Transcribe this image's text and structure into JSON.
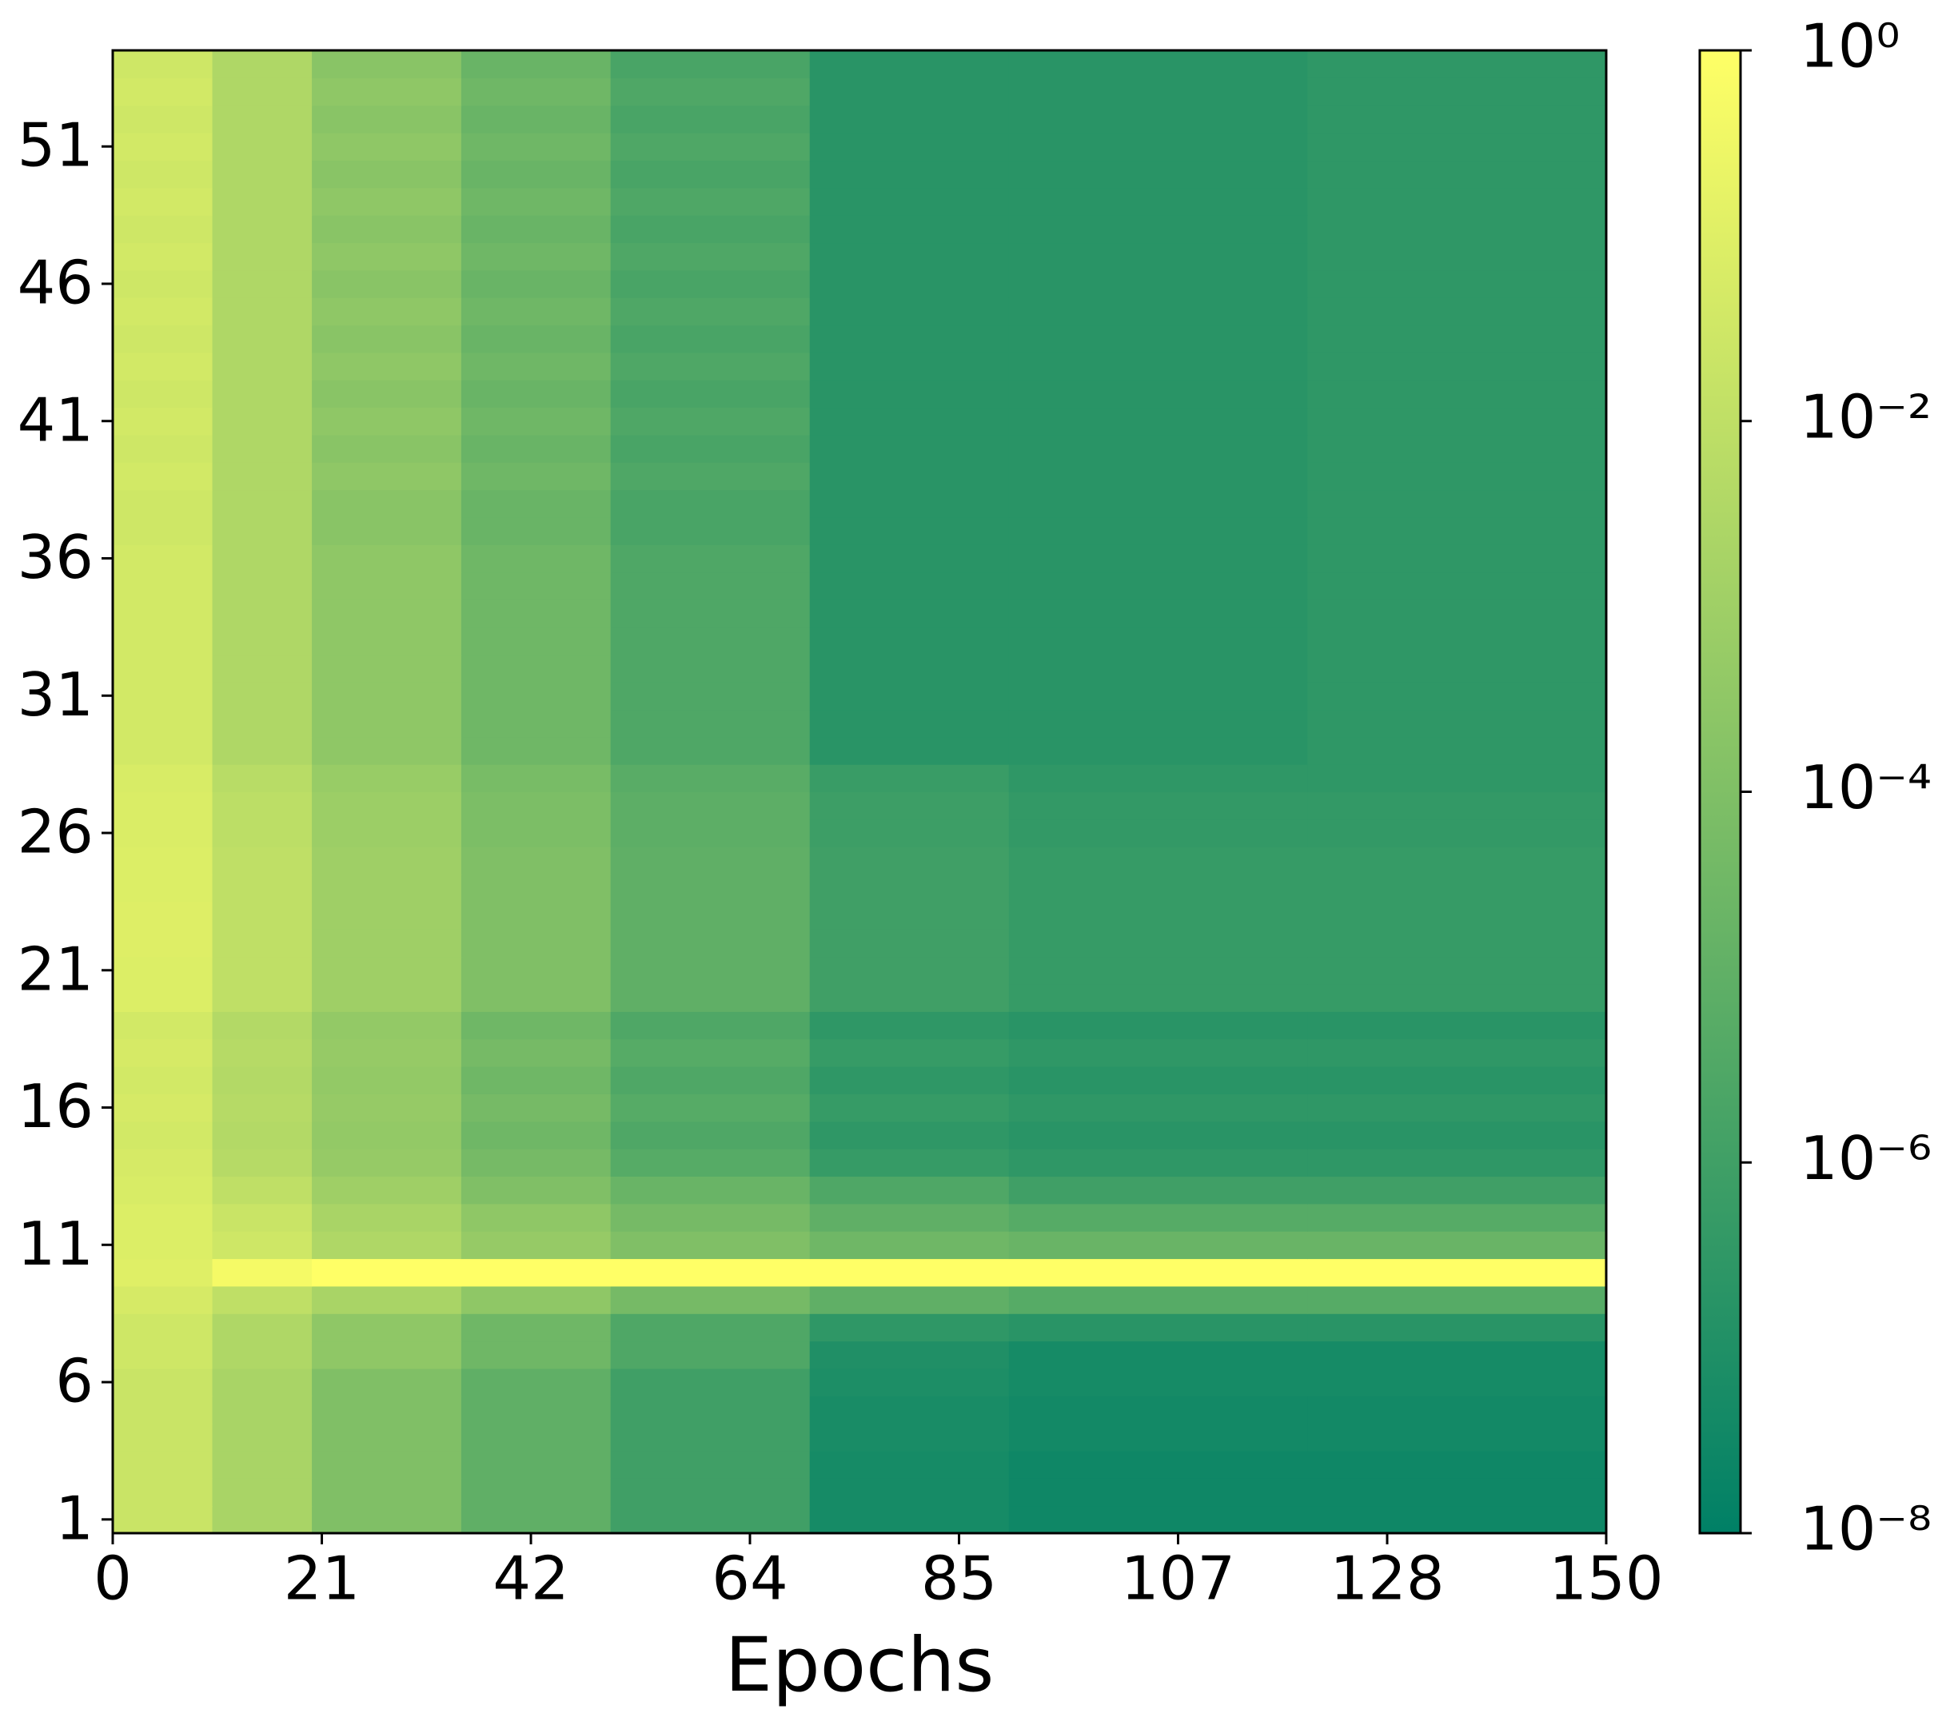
{
  "chart_data": {
    "type": "heatmap",
    "x_label": "Epochs",
    "x_edges": [
      0,
      10,
      20,
      35,
      50,
      70,
      90,
      120,
      150
    ],
    "y": [
      1,
      2,
      3,
      4,
      5,
      6,
      7,
      8,
      9,
      10,
      11,
      12,
      13,
      14,
      15,
      16,
      17,
      18,
      19,
      20,
      21,
      22,
      23,
      24,
      25,
      26,
      27,
      28,
      29,
      30,
      31,
      32,
      33,
      34,
      35,
      36,
      37,
      38,
      39,
      40,
      41,
      42,
      43,
      44,
      45,
      46,
      47,
      48,
      49,
      50,
      51,
      52,
      53,
      54
    ],
    "values": [
      [
        0.02,
        0.002,
        0.0001,
        1e-05,
        1e-06,
        5e-08,
        3e-08,
        3e-08
      ],
      [
        0.02,
        0.002,
        0.0001,
        1e-05,
        1e-06,
        5e-08,
        3e-08,
        3e-08
      ],
      [
        0.02,
        0.002,
        0.0001,
        1e-05,
        1e-06,
        5e-08,
        3e-08,
        3e-08
      ],
      [
        0.02,
        0.002,
        0.0001,
        1e-05,
        1e-06,
        6e-08,
        4e-08,
        4e-08
      ],
      [
        0.02,
        0.002,
        0.0001,
        1e-05,
        1e-06,
        6e-08,
        4e-08,
        4e-08
      ],
      [
        0.02,
        0.002,
        0.0001,
        1e-05,
        1e-06,
        8e-08,
        5e-08,
        5e-08
      ],
      [
        0.03,
        0.003,
        0.0003,
        3e-05,
        3e-06,
        1e-07,
        5e-08,
        5e-08
      ],
      [
        0.03,
        0.003,
        0.0003,
        3e-05,
        3e-06,
        3e-07,
        2e-07,
        2e-07
      ],
      [
        0.05,
        0.01,
        0.002,
        0.0003,
        5e-05,
        1e-05,
        5e-06,
        5e-06
      ],
      [
        0.1,
        0.5,
        1,
        1,
        1,
        1,
        1,
        1
      ],
      [
        0.08,
        0.03,
        0.003,
        0.0005,
        0.0001,
        3e-05,
        2e-05,
        2e-05
      ],
      [
        0.08,
        0.02,
        0.002,
        0.0003,
        5e-05,
        1e-05,
        5e-06,
        5e-06
      ],
      [
        0.06,
        0.01,
        0.001,
        0.0001,
        2e-05,
        3e-06,
        1e-06,
        1e-06
      ],
      [
        0.05,
        0.005,
        0.0005,
        5e-05,
        5e-06,
        5e-07,
        3e-07,
        3e-07
      ],
      [
        0.04,
        0.004,
        0.0004,
        3e-05,
        3e-06,
        3e-07,
        2e-07,
        2e-07
      ],
      [
        0.05,
        0.005,
        0.0005,
        5e-05,
        5e-06,
        5e-07,
        3e-07,
        3e-07
      ],
      [
        0.04,
        0.004,
        0.0004,
        3e-05,
        3e-06,
        3e-07,
        2e-07,
        2e-07
      ],
      [
        0.05,
        0.005,
        0.0005,
        5e-05,
        5e-06,
        5e-07,
        3e-07,
        3e-07
      ],
      [
        0.04,
        0.004,
        0.0004,
        3e-05,
        3e-06,
        3e-07,
        2e-07,
        2e-07
      ],
      [
        0.08,
        0.01,
        0.001,
        0.0001,
        1e-05,
        1e-06,
        5e-07,
        5e-07
      ],
      [
        0.08,
        0.01,
        0.001,
        0.0001,
        1e-05,
        1e-06,
        5e-07,
        5e-07
      ],
      [
        0.09,
        0.01,
        0.001,
        0.0001,
        1e-05,
        1e-06,
        5e-07,
        5e-07
      ],
      [
        0.09,
        0.01,
        0.001,
        0.0001,
        1e-05,
        1e-06,
        5e-07,
        5e-07
      ],
      [
        0.08,
        0.01,
        0.001,
        0.0001,
        1e-05,
        1e-06,
        5e-07,
        5e-07
      ],
      [
        0.08,
        0.01,
        0.001,
        0.0001,
        1e-05,
        1e-06,
        5e-07,
        5e-07
      ],
      [
        0.07,
        0.008,
        0.0008,
        8e-05,
        8e-06,
        8e-07,
        4e-07,
        4e-07
      ],
      [
        0.07,
        0.008,
        0.0008,
        8e-05,
        8e-06,
        8e-07,
        4e-07,
        4e-07
      ],
      [
        0.06,
        0.006,
        0.0006,
        6e-05,
        6e-06,
        6e-07,
        3e-07,
        3e-07
      ],
      [
        0.04,
        0.003,
        0.0003,
        3e-05,
        3e-06,
        2e-07,
        2e-07,
        3e-07
      ],
      [
        0.04,
        0.003,
        0.0003,
        3e-05,
        3e-06,
        2e-07,
        2e-07,
        3e-07
      ],
      [
        0.04,
        0.003,
        0.0003,
        3e-05,
        3e-06,
        2e-07,
        2e-07,
        3e-07
      ],
      [
        0.04,
        0.003,
        0.0003,
        3e-05,
        3e-06,
        2e-07,
        2e-07,
        3e-07
      ],
      [
        0.04,
        0.003,
        0.0003,
        3e-05,
        3e-06,
        2e-07,
        2e-07,
        3e-07
      ],
      [
        0.04,
        0.003,
        0.0003,
        3e-05,
        3e-06,
        2e-07,
        2e-07,
        3e-07
      ],
      [
        0.04,
        0.003,
        0.0003,
        3e-05,
        3e-06,
        2e-07,
        2e-07,
        3e-07
      ],
      [
        0.04,
        0.003,
        0.0003,
        3e-05,
        3e-06,
        2e-07,
        2e-07,
        3e-07
      ],
      [
        0.03,
        0.003,
        0.0002,
        2e-05,
        2e-06,
        2e-07,
        2e-07,
        3e-07
      ],
      [
        0.03,
        0.003,
        0.0002,
        2e-05,
        2e-06,
        2e-07,
        2e-07,
        3e-07
      ],
      [
        0.04,
        0.003,
        0.0003,
        3e-05,
        3e-06,
        2e-07,
        2e-07,
        3e-07
      ],
      [
        0.03,
        0.003,
        0.0002,
        2e-05,
        2e-06,
        2e-07,
        2e-07,
        3e-07
      ],
      [
        0.04,
        0.003,
        0.0003,
        3e-05,
        3e-06,
        2e-07,
        2e-07,
        3e-07
      ],
      [
        0.03,
        0.003,
        0.0002,
        2e-05,
        2e-06,
        2e-07,
        2e-07,
        3e-07
      ],
      [
        0.04,
        0.003,
        0.0003,
        3e-05,
        3e-06,
        2e-07,
        2e-07,
        3e-07
      ],
      [
        0.03,
        0.003,
        0.0002,
        2e-05,
        2e-06,
        2e-07,
        2e-07,
        3e-07
      ],
      [
        0.04,
        0.003,
        0.0003,
        3e-05,
        3e-06,
        2e-07,
        2e-07,
        3e-07
      ],
      [
        0.03,
        0.003,
        0.0002,
        2e-05,
        2e-06,
        2e-07,
        2e-07,
        3e-07
      ],
      [
        0.04,
        0.003,
        0.0003,
        3e-05,
        3e-06,
        2e-07,
        2e-07,
        3e-07
      ],
      [
        0.03,
        0.003,
        0.0002,
        2e-05,
        2e-06,
        2e-07,
        2e-07,
        3e-07
      ],
      [
        0.04,
        0.003,
        0.0003,
        3e-05,
        3e-06,
        2e-07,
        2e-07,
        3e-07
      ],
      [
        0.03,
        0.003,
        0.0002,
        2e-05,
        2e-06,
        2e-07,
        2e-07,
        3e-07
      ],
      [
        0.04,
        0.003,
        0.0003,
        3e-05,
        3e-06,
        2e-07,
        2e-07,
        3e-07
      ],
      [
        0.03,
        0.003,
        0.0002,
        2e-05,
        2e-06,
        2e-07,
        2e-07,
        3e-07
      ],
      [
        0.04,
        0.003,
        0.0003,
        3e-05,
        3e-06,
        2e-07,
        2e-07,
        3e-07
      ],
      [
        0.03,
        0.003,
        0.0002,
        2e-05,
        2e-06,
        2e-07,
        2e-07,
        3e-07
      ]
    ],
    "xlim": [
      0,
      150
    ],
    "xticks": [
      0,
      21,
      42,
      64,
      85,
      107,
      128,
      150
    ],
    "ylim": [
      0.5,
      54.5
    ],
    "yticks": [
      1,
      6,
      11,
      16,
      21,
      26,
      31,
      36,
      41,
      46,
      51
    ],
    "colormap": "summer",
    "color_log_scale": true,
    "clim": [
      1e-08,
      1
    ],
    "cticks": [
      {
        "value": 1e-08,
        "label": "10⁻⁸"
      },
      {
        "value": 1e-06,
        "label": "10⁻⁶"
      },
      {
        "value": 0.0001,
        "label": "10⁻⁴"
      },
      {
        "value": 0.01,
        "label": "10⁻²"
      },
      {
        "value": 1,
        "label": "10⁰"
      }
    ]
  }
}
